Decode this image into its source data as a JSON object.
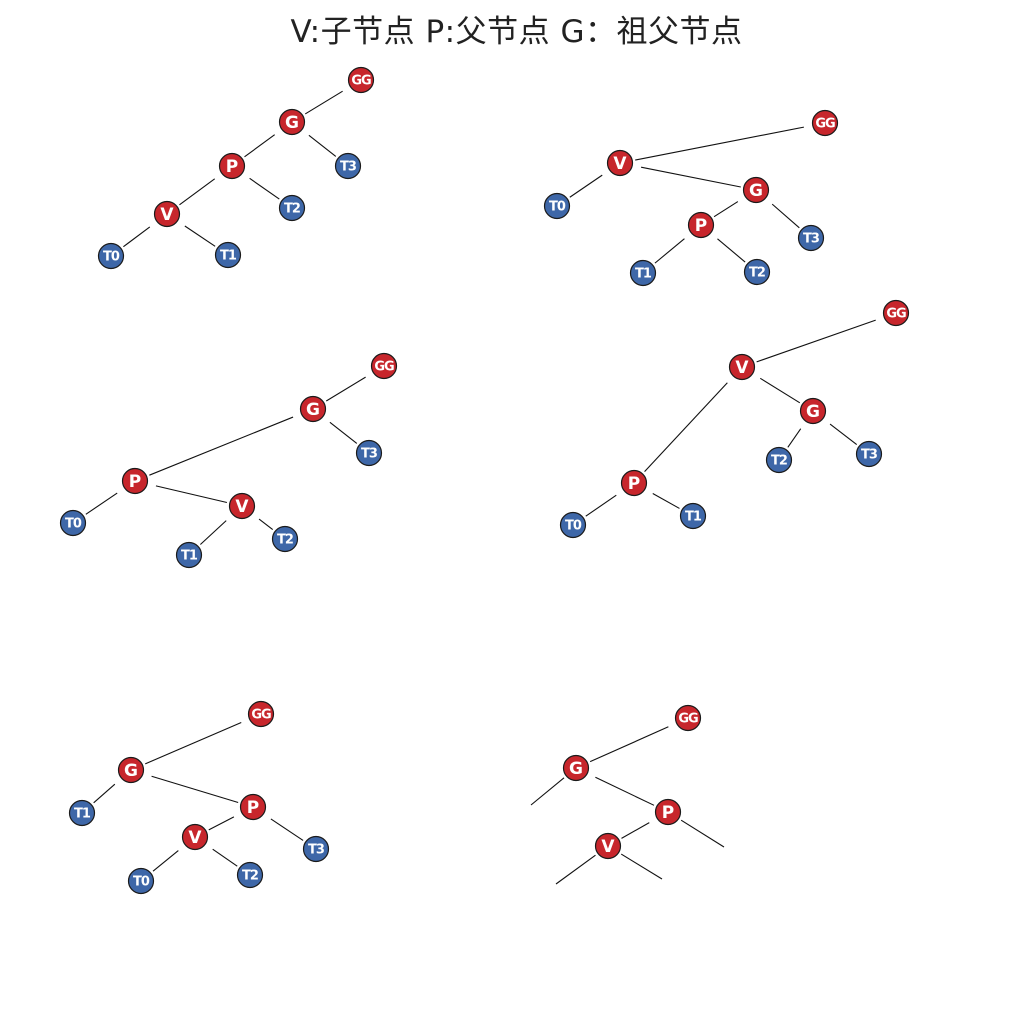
{
  "title": "V:子节点  P:父节点 G：祖父节点",
  "colors": {
    "red": "#C7262C",
    "blue": "#3E67A8",
    "edge": "#111111"
  },
  "trees": [
    {
      "id": "tree-1",
      "nodes": [
        {
          "id": "GG",
          "label": "GG",
          "color": "red"
        },
        {
          "id": "G",
          "label": "G",
          "color": "red"
        },
        {
          "id": "P",
          "label": "P",
          "color": "red"
        },
        {
          "id": "T3",
          "label": "T3",
          "color": "blue"
        },
        {
          "id": "V",
          "label": "V",
          "color": "red"
        },
        {
          "id": "T2",
          "label": "T2",
          "color": "blue"
        },
        {
          "id": "T0",
          "label": "T0",
          "color": "blue"
        },
        {
          "id": "T1",
          "label": "T1",
          "color": "blue"
        }
      ]
    },
    {
      "id": "tree-2",
      "nodes": [
        {
          "id": "GG",
          "label": "GG",
          "color": "red"
        },
        {
          "id": "V",
          "label": "V",
          "color": "red"
        },
        {
          "id": "T0",
          "label": "T0",
          "color": "blue"
        },
        {
          "id": "G",
          "label": "G",
          "color": "red"
        },
        {
          "id": "P",
          "label": "P",
          "color": "red"
        },
        {
          "id": "T3",
          "label": "T3",
          "color": "blue"
        },
        {
          "id": "T1",
          "label": "T1",
          "color": "blue"
        },
        {
          "id": "T2",
          "label": "T2",
          "color": "blue"
        }
      ]
    },
    {
      "id": "tree-3",
      "nodes": [
        {
          "id": "GG",
          "label": "GG",
          "color": "red"
        },
        {
          "id": "G",
          "label": "G",
          "color": "red"
        },
        {
          "id": "T3",
          "label": "T3",
          "color": "blue"
        },
        {
          "id": "P",
          "label": "P",
          "color": "red"
        },
        {
          "id": "T0",
          "label": "T0",
          "color": "blue"
        },
        {
          "id": "V",
          "label": "V",
          "color": "red"
        },
        {
          "id": "T1",
          "label": "T1",
          "color": "blue"
        },
        {
          "id": "T2",
          "label": "T2",
          "color": "blue"
        }
      ]
    },
    {
      "id": "tree-4",
      "nodes": [
        {
          "id": "GG",
          "label": "GG",
          "color": "red"
        },
        {
          "id": "V",
          "label": "V",
          "color": "red"
        },
        {
          "id": "G",
          "label": "G",
          "color": "red"
        },
        {
          "id": "T2",
          "label": "T2",
          "color": "blue"
        },
        {
          "id": "T3",
          "label": "T3",
          "color": "blue"
        },
        {
          "id": "P",
          "label": "P",
          "color": "red"
        },
        {
          "id": "T0",
          "label": "T0",
          "color": "blue"
        },
        {
          "id": "T1",
          "label": "T1",
          "color": "blue"
        }
      ]
    },
    {
      "id": "tree-5",
      "nodes": [
        {
          "id": "GG",
          "label": "GG",
          "color": "red"
        },
        {
          "id": "G",
          "label": "G",
          "color": "red"
        },
        {
          "id": "T1",
          "label": "T1",
          "color": "blue"
        },
        {
          "id": "P",
          "label": "P",
          "color": "red"
        },
        {
          "id": "V",
          "label": "V",
          "color": "red"
        },
        {
          "id": "T3",
          "label": "T3",
          "color": "blue"
        },
        {
          "id": "T0",
          "label": "T0",
          "color": "blue"
        },
        {
          "id": "T2",
          "label": "T2",
          "color": "blue"
        }
      ]
    },
    {
      "id": "tree-6",
      "nodes": [
        {
          "id": "GG",
          "label": "GG",
          "color": "red"
        },
        {
          "id": "G",
          "label": "G",
          "color": "red"
        },
        {
          "id": "P",
          "label": "P",
          "color": "red"
        },
        {
          "id": "V",
          "label": "V",
          "color": "red"
        }
      ]
    }
  ]
}
